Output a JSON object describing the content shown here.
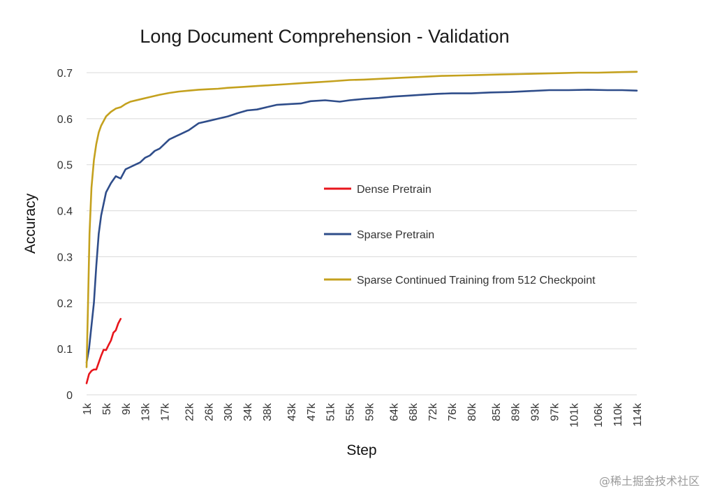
{
  "watermark": "@稀土掘金技术社区",
  "chart_data": {
    "type": "line",
    "title": "Long Document Comprehension - Validation",
    "xlabel": "Step",
    "ylabel": "Accuracy",
    "ylim": [
      0,
      0.7
    ],
    "yticks": [
      "0",
      "0.1",
      "0.2",
      "0.3",
      "0.4",
      "0.5",
      "0.6",
      "0.7"
    ],
    "xlim": [
      1,
      114
    ],
    "xticks": [
      "1k",
      "5k",
      "9k",
      "13k",
      "17k",
      "22k",
      "26k",
      "30k",
      "34k",
      "38k",
      "43k",
      "47k",
      "51k",
      "55k",
      "59k",
      "64k",
      "68k",
      "72k",
      "76k",
      "80k",
      "85k",
      "89k",
      "93k",
      "97k",
      "101k",
      "106k",
      "110k",
      "114k"
    ],
    "grid": "horizontal",
    "legend": "center-right",
    "series": [
      {
        "name": "Dense Pretrain",
        "color": "#e8161c",
        "x": [
          1,
          1.5,
          2,
          2.5,
          3,
          3.5,
          4,
          4.5,
          5,
          5.5,
          6,
          6.5,
          7,
          7.5,
          8
        ],
        "y": [
          0.025,
          0.045,
          0.052,
          0.055,
          0.055,
          0.07,
          0.085,
          0.098,
          0.097,
          0.108,
          0.118,
          0.135,
          0.14,
          0.155,
          0.165
        ]
      },
      {
        "name": "Sparse Pretrain",
        "color": "#2f4d8a",
        "x": [
          1,
          1.5,
          2,
          2.5,
          3,
          3.5,
          4,
          5,
          6,
          7,
          8,
          9,
          10,
          11,
          12,
          13,
          14,
          15,
          16,
          17,
          18,
          19,
          20,
          22,
          24,
          26,
          28,
          30,
          32,
          34,
          36,
          38,
          40,
          43,
          45,
          47,
          50,
          53,
          55,
          58,
          61,
          64,
          67,
          70,
          73,
          76,
          80,
          84,
          88,
          92,
          96,
          100,
          104,
          108,
          111,
          114
        ],
        "y": [
          0.07,
          0.1,
          0.15,
          0.2,
          0.28,
          0.35,
          0.39,
          0.44,
          0.46,
          0.475,
          0.47,
          0.49,
          0.495,
          0.5,
          0.505,
          0.515,
          0.52,
          0.53,
          0.535,
          0.545,
          0.555,
          0.56,
          0.565,
          0.575,
          0.59,
          0.595,
          0.6,
          0.605,
          0.612,
          0.618,
          0.62,
          0.625,
          0.63,
          0.632,
          0.633,
          0.638,
          0.64,
          0.637,
          0.64,
          0.643,
          0.645,
          0.648,
          0.65,
          0.652,
          0.654,
          0.655,
          0.655,
          0.657,
          0.658,
          0.66,
          0.662,
          0.662,
          0.663,
          0.662,
          0.662,
          0.661
        ]
      },
      {
        "name": "Sparse Continued Training from 512 Checkpoint",
        "color": "#c4a11e",
        "x": [
          1,
          1.3,
          1.6,
          2,
          2.5,
          3,
          3.5,
          4,
          5,
          6,
          7,
          8,
          9,
          10,
          12,
          14,
          16,
          18,
          20,
          22,
          24,
          26,
          28,
          30,
          33,
          36,
          39,
          42,
          45,
          48,
          51,
          55,
          58,
          62,
          66,
          70,
          74,
          78,
          82,
          86,
          90,
          94,
          98,
          102,
          106,
          110,
          114
        ],
        "y": [
          0.06,
          0.2,
          0.35,
          0.45,
          0.51,
          0.545,
          0.57,
          0.585,
          0.605,
          0.615,
          0.622,
          0.625,
          0.632,
          0.637,
          0.642,
          0.647,
          0.652,
          0.656,
          0.659,
          0.661,
          0.663,
          0.664,
          0.665,
          0.667,
          0.669,
          0.671,
          0.673,
          0.675,
          0.677,
          0.679,
          0.681,
          0.684,
          0.685,
          0.687,
          0.689,
          0.691,
          0.693,
          0.694,
          0.695,
          0.696,
          0.697,
          0.698,
          0.699,
          0.7,
          0.7,
          0.701,
          0.702
        ]
      }
    ]
  }
}
